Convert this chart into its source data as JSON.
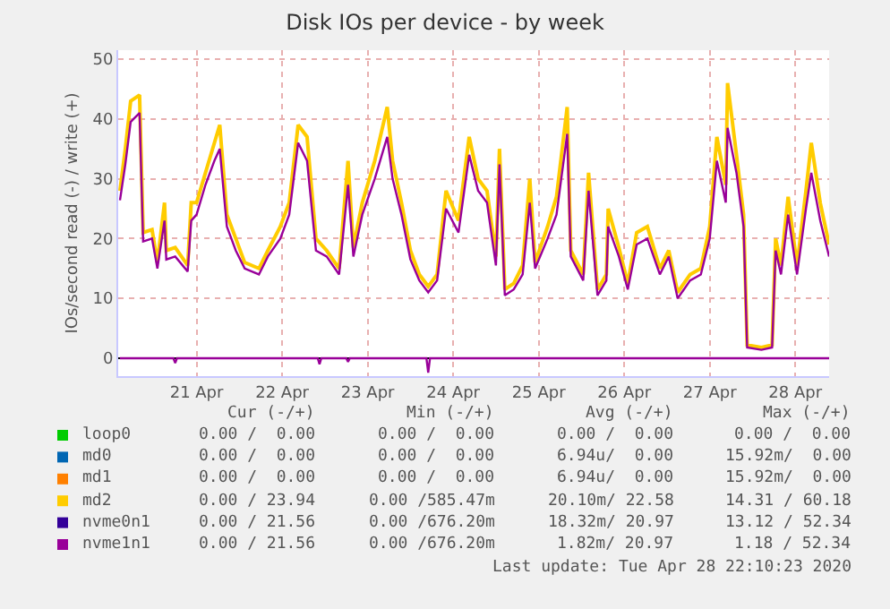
{
  "chart_data": {
    "type": "line",
    "title": "Disk IOs per device - by week",
    "ylabel": "IOs/second read (-) / write (+)",
    "x": [
      "2020-04-20T14:30",
      "2020-04-20T16:00",
      "2020-04-20T17:30",
      "2020-04-20T20:00",
      "2020-04-20T21:00",
      "2020-04-20T23:30",
      "2020-04-21T01:00",
      "2020-04-21T03:00",
      "2020-04-21T03:30",
      "2020-04-21T06:00",
      "2020-04-21T09:30",
      "2020-04-21T10:30",
      "2020-04-21T12:00",
      "2020-04-21T14:30",
      "2020-04-21T17:00",
      "2020-04-21T18:30",
      "2020-04-21T20:30",
      "2020-04-21T23:00",
      "2020-04-22T01:30",
      "2020-04-22T05:30",
      "2020-04-22T08:00",
      "2020-04-22T11:30",
      "2020-04-22T14:00",
      "2020-04-22T16:30",
      "2020-04-22T19:00",
      "2020-04-22T21:30",
      "2020-04-23T00:30",
      "2020-04-23T04:00",
      "2020-04-23T06:30",
      "2020-04-23T08:00",
      "2020-04-23T10:30",
      "2020-04-23T14:00",
      "2020-04-23T17:30",
      "2020-04-23T19:00",
      "2020-04-23T21:30",
      "2020-04-24T00:00",
      "2020-04-24T02:30",
      "2020-04-24T05:00",
      "2020-04-24T07:30",
      "2020-04-24T10:00",
      "2020-04-24T13:30",
      "2020-04-24T16:30",
      "2020-04-24T19:00",
      "2020-04-24T21:30",
      "2020-04-25T00:00",
      "2020-04-25T01:00",
      "2020-04-25T02:30",
      "2020-04-25T05:00",
      "2020-04-25T07:30",
      "2020-04-25T09:30",
      "2020-04-25T11:00",
      "2020-04-25T14:30",
      "2020-04-25T17:00",
      "2020-04-25T20:00",
      "2020-04-25T21:00",
      "2020-04-26T00:30",
      "2020-04-26T02:00",
      "2020-04-26T04:30",
      "2020-04-26T07:00",
      "2020-04-26T07:30",
      "2020-04-26T10:30",
      "2020-04-26T13:00",
      "2020-04-26T15:30",
      "2020-04-26T18:30",
      "2020-04-26T22:00",
      "2020-04-27T00:30",
      "2020-04-27T03:00",
      "2020-04-27T06:30",
      "2020-04-27T09:30",
      "2020-04-27T12:00",
      "2020-04-27T14:00",
      "2020-04-27T16:30",
      "2020-04-27T17:00",
      "2020-04-27T19:30",
      "2020-04-27T21:30",
      "2020-04-27T22:30",
      "2020-04-28T02:30",
      "2020-04-28T05:30",
      "2020-04-28T06:30",
      "2020-04-28T08:00",
      "2020-04-28T10:00",
      "2020-04-28T12:30",
      "2020-04-28T15:00",
      "2020-04-28T16:30",
      "2020-04-28T19:00",
      "2020-04-28T21:30"
    ],
    "series": [
      {
        "name": "loop0",
        "color": "#00cc00",
        "values": [
          null,
          null,
          null,
          null,
          null,
          null,
          null,
          null,
          null,
          null,
          null,
          null,
          null,
          null,
          null,
          null,
          null,
          null,
          null,
          null,
          null,
          null,
          null,
          null,
          null,
          null,
          null,
          null,
          null,
          null,
          null,
          null,
          null,
          null,
          null,
          null,
          null,
          null,
          null,
          null,
          null,
          null,
          null,
          null,
          null,
          null,
          null,
          null,
          null,
          null,
          null,
          null,
          null,
          null,
          null,
          null,
          null,
          null,
          null,
          null,
          null,
          null,
          null,
          null,
          null,
          null,
          null,
          null,
          null,
          null,
          null,
          null,
          null,
          null,
          null,
          null,
          null,
          null,
          null,
          null,
          null,
          null,
          null,
          null,
          null,
          null
        ]
      },
      {
        "name": "md0",
        "color": "#0066b3",
        "values": [
          null,
          null,
          null,
          null,
          null,
          null,
          null,
          null,
          null,
          null,
          null,
          null,
          null,
          null,
          null,
          null,
          null,
          null,
          null,
          null,
          null,
          null,
          null,
          null,
          null,
          null,
          null,
          null,
          null,
          null,
          null,
          null,
          null,
          null,
          null,
          null,
          null,
          null,
          null,
          null,
          null,
          null,
          null,
          null,
          null,
          null,
          null,
          null,
          null,
          null,
          null,
          null,
          null,
          null,
          null,
          null,
          null,
          null,
          null,
          null,
          null,
          null,
          null,
          null,
          null,
          null,
          null,
          null,
          null,
          null,
          null,
          null,
          null,
          null,
          null,
          null,
          null,
          null,
          null,
          null,
          null,
          null,
          null,
          null,
          null,
          null
        ]
      },
      {
        "name": "md1",
        "color": "#ff8000",
        "values": [
          null,
          null,
          null,
          null,
          null,
          null,
          null,
          null,
          null,
          null,
          null,
          null,
          null,
          null,
          null,
          null,
          null,
          null,
          null,
          null,
          null,
          null,
          null,
          null,
          null,
          null,
          null,
          null,
          null,
          null,
          null,
          null,
          null,
          null,
          null,
          null,
          null,
          null,
          null,
          null,
          null,
          null,
          null,
          null,
          null,
          null,
          null,
          null,
          null,
          null,
          null,
          null,
          null,
          null,
          null,
          null,
          null,
          null,
          null,
          null,
          null,
          null,
          null,
          null,
          null,
          null,
          null,
          null,
          null,
          null,
          null,
          null,
          null,
          null,
          null,
          null,
          null,
          null,
          null,
          null,
          null,
          null,
          null,
          null,
          null,
          null
        ]
      },
      {
        "name": "md2",
        "color": "#ffcc00",
        "values": [
          28,
          35,
          43,
          44,
          21,
          21.5,
          16,
          26,
          18,
          18.5,
          15.5,
          26,
          26,
          31,
          36,
          39,
          24,
          20,
          16,
          15,
          18,
          22,
          26,
          39,
          37,
          20,
          18,
          15,
          33,
          18.5,
          26,
          33,
          42,
          33,
          26,
          18,
          14,
          12,
          14,
          28,
          23,
          37,
          30,
          28,
          17,
          35,
          11.5,
          12.5,
          15.5,
          30,
          16,
          22,
          27,
          42,
          18,
          14,
          31,
          11.5,
          14,
          25,
          18.5,
          12.5,
          21,
          22,
          15,
          18,
          11,
          14,
          15,
          22,
          37,
          29,
          46,
          34,
          24,
          2.2,
          1.8,
          2.2,
          20,
          15.5,
          27,
          15.5,
          28,
          36,
          26,
          19
        ]
      },
      {
        "name": "nvme0n1",
        "color": "#330099",
        "values": [
          null,
          null,
          null,
          null,
          null,
          null,
          null,
          null,
          null,
          null,
          null,
          null,
          null,
          null,
          null,
          null,
          null,
          null,
          null,
          null,
          null,
          null,
          null,
          null,
          null,
          null,
          null,
          null,
          null,
          null,
          null,
          null,
          null,
          null,
          null,
          null,
          null,
          null,
          null,
          null,
          null,
          null,
          null,
          null,
          null,
          null,
          null,
          null,
          null,
          null,
          null,
          null,
          null,
          null,
          null,
          null,
          null,
          null,
          null,
          null,
          null,
          null,
          null,
          null,
          null,
          null,
          null,
          null,
          null,
          null,
          null,
          null,
          null,
          null,
          null,
          null,
          null,
          null,
          null,
          null,
          null,
          null,
          null,
          null,
          null,
          null
        ]
      },
      {
        "name": "nvme1n1",
        "color": "#990099",
        "values": [
          26.4,
          32.4,
          39.5,
          41,
          19.5,
          20,
          15,
          23,
          16.5,
          17,
          14.5,
          23,
          24,
          29,
          33,
          35,
          22,
          18,
          15,
          14,
          17,
          20,
          24,
          36,
          33,
          18,
          17,
          14,
          29,
          17,
          24,
          30,
          37,
          30,
          24,
          16.5,
          13,
          11,
          13,
          25,
          21,
          34,
          28,
          26,
          15.5,
          32.4,
          10.5,
          11.5,
          14,
          26,
          15,
          20,
          24,
          37.5,
          17,
          13,
          28,
          10.5,
          13,
          22,
          17,
          11.5,
          19,
          20,
          14,
          17,
          10,
          13,
          14,
          20,
          33,
          26,
          38.5,
          31,
          22,
          1.8,
          1.4,
          1.8,
          18,
          14,
          24,
          14,
          25,
          31,
          23,
          17
        ]
      },
      {
        "color": "#990099",
        "x": [
          "2020-04-20T14:30",
          "2020-04-21T05:30",
          "2020-04-21T06:00",
          "2020-04-21T06:30",
          "2020-04-22T22:00",
          "2020-04-22T22:30",
          "2020-04-22T23:00",
          "2020-04-23T06:00",
          "2020-04-23T06:30",
          "2020-04-23T07:00",
          "2020-04-24T04:30",
          "2020-04-24T05:00",
          "2020-04-24T05:30",
          "2020-04-28T21:30"
        ],
        "values": [
          0,
          0,
          -0.8,
          0,
          0,
          -1,
          0,
          0,
          -0.6,
          0,
          0,
          -2.4,
          0,
          0
        ]
      }
    ],
    "xlim": [
      "2020-04-20T14:00",
      "2020-04-28T21:30"
    ],
    "xticks": [
      {
        "value": "2020-04-21T12:00",
        "label": "21 Apr"
      },
      {
        "value": "2020-04-22T12:00",
        "label": "22 Apr"
      },
      {
        "value": "2020-04-23T12:00",
        "label": "23 Apr"
      },
      {
        "value": "2020-04-24T12:00",
        "label": "24 Apr"
      },
      {
        "value": "2020-04-25T12:00",
        "label": "25 Apr"
      },
      {
        "value": "2020-04-26T12:00",
        "label": "26 Apr"
      },
      {
        "value": "2020-04-27T12:00",
        "label": "27 Apr"
      },
      {
        "value": "2020-04-28T12:00",
        "label": "28 Apr"
      }
    ],
    "ylim": [
      -3,
      51.5
    ],
    "yticks": [
      0,
      10,
      20,
      30,
      40,
      50
    ],
    "grid": true,
    "legend": "bottom",
    "annotations": [
      "Cur (-/+)",
      "Min (-/+)",
      "Avg (-/+)",
      "Max (-/+)",
      "0.00 /  0.00",
      "0.00 /  0.00",
      "0.00 /  0.00",
      "0.00 /  0.00",
      "0.00 /  0.00",
      "0.00 /  0.00",
      "6.94u/  0.00",
      "15.92m/  0.00",
      "0.00 /  0.00",
      "0.00 /  0.00",
      "6.94u/  0.00",
      "15.92m/  0.00",
      "0.00 / 23.94",
      "0.00 /585.47m",
      "20.10m/ 22.58",
      "14.31 / 60.18",
      "0.00 / 21.56",
      "0.00 /676.20m",
      "18.32m/ 20.97",
      "13.12 / 52.34",
      "0.00 / 21.56",
      "0.00 /676.20m",
      "1.82m/ 20.97",
      "1.18 / 52.34",
      "Last update: Tue Apr 28 22:10:23 2020"
    ]
  }
}
